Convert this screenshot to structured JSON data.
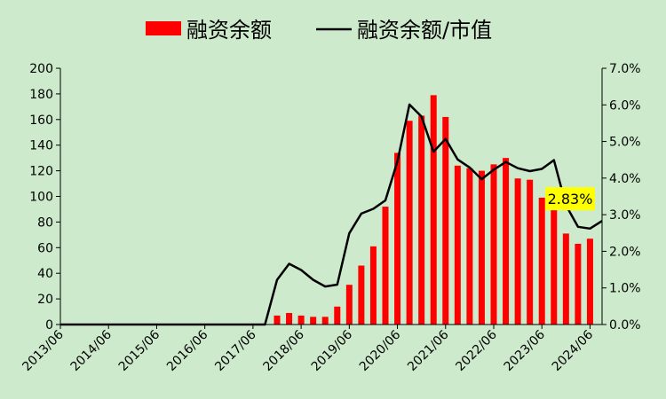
{
  "chart_data": {
    "type": "bar",
    "legend": {
      "position": "top-center",
      "bar_series_label": "融资余额",
      "line_series_label": "融资余额/市值"
    },
    "colors": {
      "background": "#cdeacc",
      "bar": "#ff0000",
      "line": "#000000",
      "callout_bg": "#ffff00"
    },
    "x_tick_labels": [
      "2013/06",
      "2014/06",
      "2015/06",
      "2016/06",
      "2017/06",
      "2018/06",
      "2019/06",
      "2020/06",
      "2021/06",
      "2022/06",
      "2023/06",
      "2024/06"
    ],
    "y_left_ticks": [
      "0",
      "20",
      "40",
      "60",
      "80",
      "100",
      "120",
      "140",
      "160",
      "180",
      "200"
    ],
    "y_right_ticks": [
      "0.0%",
      "1.0%",
      "2.0%",
      "3.0%",
      "4.0%",
      "5.0%",
      "6.0%",
      "7.0%"
    ],
    "ylim_left": [
      0,
      200
    ],
    "ylim_right": [
      0,
      0.07
    ],
    "x_range": [
      "2013-06",
      "2024-09"
    ],
    "grid": false,
    "periods": [
      "2013-06",
      "2013-09",
      "2013-12",
      "2014-03",
      "2014-06",
      "2014-09",
      "2014-12",
      "2015-03",
      "2015-06",
      "2015-09",
      "2015-12",
      "2016-03",
      "2016-06",
      "2016-09",
      "2016-12",
      "2017-03",
      "2017-06",
      "2017-09",
      "2017-12",
      "2018-03",
      "2018-06",
      "2018-09",
      "2018-12",
      "2019-03",
      "2019-06",
      "2019-09",
      "2019-12",
      "2020-03",
      "2020-06",
      "2020-09",
      "2020-12",
      "2021-03",
      "2021-06",
      "2021-09",
      "2021-12",
      "2022-03",
      "2022-06",
      "2022-09",
      "2022-12",
      "2023-03",
      "2023-06",
      "2023-09",
      "2023-12",
      "2024-03",
      "2024-06",
      "2024-09"
    ],
    "series": [
      {
        "name": "融资余额",
        "type": "bar",
        "axis": "left",
        "values": [
          0,
          0,
          0,
          0,
          0,
          0,
          0,
          0,
          0,
          0,
          0,
          0,
          0,
          0,
          0,
          0,
          0,
          0,
          7,
          9,
          7,
          6,
          6,
          14,
          31,
          46,
          61,
          92,
          134,
          159,
          163,
          179,
          162,
          124,
          122,
          120,
          125,
          130,
          114,
          113,
          99,
          95,
          71,
          63,
          67,
          null
        ]
      },
      {
        "name": "融资余额/市值",
        "type": "line",
        "axis": "right",
        "values": [
          0,
          0,
          0,
          0,
          0,
          0,
          0,
          0,
          0,
          0,
          0,
          0,
          0,
          0,
          0,
          0,
          0,
          0,
          0.0122,
          0.0166,
          0.0149,
          0.0122,
          0.0104,
          0.0109,
          0.0249,
          0.0303,
          0.0316,
          0.0339,
          0.0446,
          0.0601,
          0.0568,
          0.0472,
          0.0507,
          0.0451,
          0.0429,
          0.0397,
          0.0423,
          0.0444,
          0.0427,
          0.0419,
          0.0425,
          0.0449,
          0.0326,
          0.0267,
          0.0262,
          0.0283
        ]
      }
    ],
    "annotations": [
      {
        "text": "2.83%",
        "period": "2024-09",
        "series": "融资余额/市值"
      }
    ]
  }
}
